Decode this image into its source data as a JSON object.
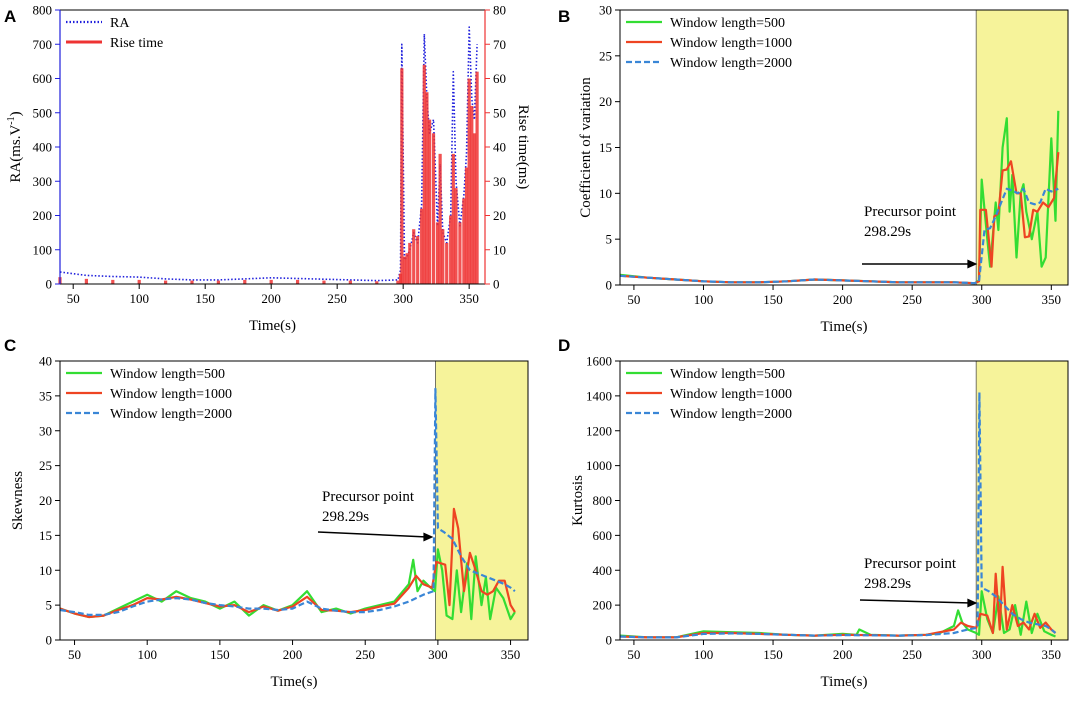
{
  "figure": {
    "colors": {
      "ra": "#1f1fdc",
      "rise_time": "#ee3333",
      "w500": "#33dd33",
      "w1000": "#ee4422",
      "w2000": "#3a86d6",
      "highlight": "#f6f39a",
      "axis": "#000000"
    }
  },
  "chart_data": [
    {
      "panel": "A",
      "type": "line",
      "title": "",
      "xlabel": "Time(s)",
      "ylabel": "RA(ms.V-1)",
      "ylabel_left_base": "RA(ms.V",
      "ylabel_left_sup": "-1",
      "ylabel_left_close": ")",
      "ylabel_right": "Rise time(ms)",
      "xlim": [
        40,
        362
      ],
      "ylim": [
        0,
        800
      ],
      "ylim_right": [
        0,
        80
      ],
      "xticks": [
        50,
        100,
        150,
        200,
        250,
        300,
        350
      ],
      "yticks": [
        0,
        100,
        200,
        300,
        400,
        500,
        600,
        700,
        800
      ],
      "yticks_right": [
        0,
        10,
        20,
        30,
        40,
        50,
        60,
        70,
        80
      ],
      "series": [
        {
          "name": "RA",
          "style": "dotted",
          "color_key": "ra",
          "x": [
            40,
            60,
            80,
            100,
            120,
            140,
            160,
            180,
            200,
            220,
            240,
            260,
            280,
            296,
            298,
            299,
            301,
            303,
            305,
            308,
            311,
            314,
            316,
            318,
            320,
            323,
            326,
            328,
            330,
            333,
            336,
            338,
            340,
            343,
            346,
            348,
            350,
            352,
            354,
            356
          ],
          "values": [
            35,
            25,
            22,
            20,
            15,
            12,
            12,
            15,
            18,
            16,
            14,
            12,
            10,
            12,
            40,
            700,
            70,
            80,
            100,
            150,
            120,
            230,
            730,
            540,
            440,
            480,
            170,
            350,
            150,
            120,
            200,
            620,
            300,
            170,
            260,
            380,
            750,
            540,
            480,
            700
          ]
        },
        {
          "name": "Rise time",
          "style": "bar",
          "color_key": "rise_time",
          "axis": "right",
          "x": [
            40,
            60,
            80,
            100,
            120,
            140,
            160,
            180,
            200,
            220,
            240,
            260,
            280,
            296,
            298,
            299,
            301,
            303,
            305,
            308,
            311,
            314,
            316,
            318,
            320,
            323,
            326,
            328,
            330,
            333,
            336,
            338,
            340,
            343,
            346,
            348,
            350,
            352,
            354,
            356
          ],
          "values": [
            2,
            1.5,
            1.2,
            1.2,
            1,
            1,
            1,
            1.2,
            1.2,
            1.2,
            1,
            1,
            0.8,
            1,
            3,
            63,
            8,
            9,
            12,
            16,
            14,
            22,
            64,
            56,
            48,
            44,
            18,
            38,
            16,
            12,
            20,
            38,
            28,
            18,
            25,
            34,
            60,
            52,
            44,
            62
          ]
        }
      ],
      "legend": [
        "RA",
        "Rise time"
      ],
      "legend_position": "top-left"
    },
    {
      "panel": "B",
      "type": "line",
      "title": "",
      "xlabel": "Time(s)",
      "ylabel": "Coefficient of variation",
      "xlim": [
        40,
        362
      ],
      "ylim": [
        0,
        30
      ],
      "xticks": [
        50,
        100,
        150,
        200,
        250,
        300,
        350
      ],
      "yticks": [
        0,
        5,
        10,
        15,
        20,
        25,
        30
      ],
      "highlight_xrange": [
        296,
        362
      ],
      "annotation": {
        "line1": "Precursor point",
        "line2": "298.29s",
        "x": 298.29
      },
      "series": [
        {
          "name": "Window length=500",
          "color_key": "w500",
          "x": [
            40,
            60,
            80,
            100,
            120,
            140,
            160,
            180,
            200,
            220,
            240,
            260,
            280,
            295,
            298,
            300,
            304,
            306,
            310,
            312,
            315,
            318,
            320,
            322,
            325,
            328,
            330,
            332,
            336,
            340,
            343,
            346,
            350,
            353,
            355
          ],
          "values": [
            1.1,
            0.8,
            0.6,
            0.4,
            0.3,
            0.3,
            0.4,
            0.6,
            0.5,
            0.4,
            0.3,
            0.3,
            0.3,
            0.2,
            0.5,
            11.5,
            5,
            2,
            9,
            6,
            15,
            18.2,
            8,
            12,
            3,
            10,
            11,
            8,
            5,
            8,
            2,
            3,
            16,
            7,
            19
          ]
        },
        {
          "name": "Window length=1000",
          "color_key": "w1000",
          "x": [
            40,
            60,
            80,
            100,
            120,
            140,
            160,
            180,
            200,
            220,
            240,
            260,
            280,
            295,
            298,
            299,
            303,
            307,
            309,
            312,
            315,
            318,
            321,
            325,
            328,
            331,
            334,
            337,
            340,
            344,
            348,
            352,
            355
          ],
          "values": [
            1.0,
            0.8,
            0.6,
            0.4,
            0.3,
            0.3,
            0.4,
            0.6,
            0.5,
            0.4,
            0.3,
            0.3,
            0.3,
            0.2,
            0.4,
            8.2,
            8.2,
            2.0,
            7.5,
            7.8,
            12.5,
            12.6,
            13.5,
            10,
            10,
            5.2,
            5.3,
            8.2,
            8.0,
            9,
            8.5,
            9.5,
            14.5
          ]
        },
        {
          "name": "Window length=2000",
          "color_key": "w2000",
          "style": "dashed",
          "x": [
            40,
            60,
            80,
            100,
            120,
            140,
            160,
            180,
            200,
            220,
            240,
            260,
            280,
            295,
            298,
            302,
            306,
            310,
            314,
            318,
            322,
            326,
            330,
            334,
            338,
            342,
            346,
            350,
            355
          ],
          "values": [
            1.0,
            0.8,
            0.6,
            0.4,
            0.3,
            0.3,
            0.4,
            0.6,
            0.5,
            0.4,
            0.3,
            0.3,
            0.3,
            0.2,
            0.4,
            6,
            6.2,
            7.5,
            9,
            10.5,
            10.3,
            10,
            10.5,
            9,
            8.8,
            9,
            10.5,
            10.2,
            10.5
          ]
        }
      ],
      "legend": [
        "Window length=500",
        "Window length=1000",
        "Window length=2000"
      ],
      "legend_position": "top-left"
    },
    {
      "panel": "C",
      "type": "line",
      "title": "",
      "xlabel": "Time(s)",
      "ylabel": "Skewness",
      "xlim": [
        40,
        362
      ],
      "ylim": [
        0,
        40
      ],
      "xticks": [
        50,
        100,
        150,
        200,
        250,
        300,
        350
      ],
      "yticks": [
        0,
        5,
        10,
        15,
        20,
        25,
        30,
        35,
        40
      ],
      "highlight_xrange": [
        298.3,
        362
      ],
      "annotation": {
        "line1": "Precursor point",
        "line2": "298.29s",
        "x": 298.29
      },
      "series": [
        {
          "name": "Window length=500",
          "color_key": "w500",
          "x": [
            40,
            50,
            60,
            70,
            80,
            90,
            100,
            110,
            120,
            130,
            140,
            150,
            160,
            170,
            180,
            190,
            200,
            210,
            220,
            230,
            240,
            250,
            260,
            270,
            280,
            283,
            286,
            290,
            295,
            298,
            300,
            303,
            306,
            310,
            313,
            316,
            320,
            323,
            326,
            330,
            333,
            336,
            340,
            345,
            350,
            353
          ],
          "values": [
            4.5,
            3.8,
            3.3,
            3.5,
            4.5,
            5.5,
            6.5,
            5.5,
            7,
            6,
            5.5,
            4.5,
            5.5,
            3.5,
            5,
            4.2,
            5,
            7,
            4,
            4.5,
            3.8,
            4.5,
            5,
            5.5,
            8,
            11.5,
            7,
            8.5,
            7.5,
            7,
            13,
            10,
            3.5,
            3,
            10,
            4,
            11,
            3,
            12,
            5,
            9,
            3,
            7.5,
            6,
            3,
            4
          ]
        },
        {
          "name": "Window length=1000",
          "color_key": "w1000",
          "x": [
            40,
            50,
            60,
            70,
            80,
            90,
            100,
            110,
            120,
            130,
            140,
            150,
            160,
            170,
            180,
            190,
            200,
            210,
            220,
            230,
            240,
            250,
            260,
            270,
            280,
            285,
            290,
            296,
            299,
            305,
            308,
            311,
            314,
            318,
            322,
            326,
            330,
            334,
            338,
            342,
            346,
            350,
            353
          ],
          "values": [
            4.5,
            3.8,
            3.3,
            3.5,
            4.3,
            5,
            6,
            5.8,
            6.2,
            5.8,
            5.3,
            4.8,
            5,
            4,
            4.8,
            4.2,
            4.8,
            6.2,
            4.3,
            4.2,
            4,
            4.3,
            4.8,
            5.2,
            7.5,
            9.2,
            8,
            7.5,
            11.2,
            10.8,
            5,
            18.8,
            16,
            7,
            12.5,
            10,
            7,
            6.5,
            7,
            8.5,
            8.5,
            5,
            4
          ]
        },
        {
          "name": "Window length=2000",
          "color_key": "w2000",
          "style": "dashed",
          "x": [
            40,
            50,
            60,
            70,
            80,
            90,
            100,
            110,
            120,
            130,
            140,
            150,
            160,
            170,
            180,
            190,
            200,
            210,
            220,
            230,
            240,
            250,
            260,
            270,
            280,
            290,
            297,
            298.3,
            300,
            304,
            310,
            316,
            322,
            328,
            334,
            340,
            346,
            350,
            353
          ],
          "values": [
            4.3,
            4,
            3.6,
            3.6,
            4,
            4.8,
            5.5,
            5.8,
            6,
            5.8,
            5.3,
            5,
            4.8,
            4.5,
            4.5,
            4.3,
            4.5,
            5.5,
            4.5,
            4.2,
            4,
            4,
            4.3,
            4.8,
            5.5,
            6.5,
            7,
            36,
            16,
            15.5,
            14.5,
            12,
            10,
            9.5,
            9,
            8.5,
            8,
            7.5,
            7
          ]
        }
      ],
      "legend": [
        "Window length=500",
        "Window length=1000",
        "Window length=2000"
      ],
      "legend_position": "top-left"
    },
    {
      "panel": "D",
      "type": "line",
      "title": "",
      "xlabel": "Time(s)",
      "ylabel": "Kurtosis",
      "xlim": [
        40,
        362
      ],
      "ylim": [
        0,
        1600
      ],
      "xticks": [
        50,
        100,
        150,
        200,
        250,
        300,
        350
      ],
      "yticks": [
        0,
        200,
        400,
        600,
        800,
        1000,
        1200,
        1400,
        1600
      ],
      "highlight_xrange": [
        296,
        362
      ],
      "annotation": {
        "line1": "Precursor point",
        "line2": "298.29s",
        "x": 298.29
      },
      "series": [
        {
          "name": "Window length=500",
          "color_key": "w500",
          "x": [
            40,
            60,
            80,
            100,
            120,
            140,
            160,
            180,
            200,
            210,
            212,
            220,
            240,
            260,
            270,
            280,
            283,
            286,
            290,
            296,
            298,
            300,
            304,
            308,
            312,
            316,
            320,
            324,
            328,
            332,
            336,
            340,
            345,
            350,
            353
          ],
          "values": [
            25,
            15,
            15,
            50,
            45,
            40,
            30,
            25,
            35,
            30,
            60,
            30,
            25,
            30,
            40,
            80,
            170,
            100,
            60,
            40,
            30,
            280,
            120,
            40,
            250,
            40,
            60,
            200,
            30,
            220,
            40,
            150,
            50,
            30,
            20
          ]
        },
        {
          "name": "Window length=1000",
          "color_key": "w1000",
          "x": [
            40,
            60,
            80,
            100,
            120,
            140,
            160,
            180,
            200,
            220,
            240,
            260,
            280,
            285,
            290,
            296,
            299,
            304,
            308,
            310,
            313,
            315,
            318,
            322,
            326,
            330,
            334,
            338,
            342,
            346,
            350,
            353
          ],
          "values": [
            20,
            15,
            15,
            40,
            40,
            35,
            30,
            25,
            30,
            28,
            25,
            30,
            60,
            100,
            80,
            70,
            150,
            140,
            40,
            380,
            60,
            420,
            60,
            200,
            80,
            100,
            60,
            150,
            70,
            100,
            60,
            40
          ]
        },
        {
          "name": "Window length=2000",
          "color_key": "w2000",
          "style": "dashed",
          "x": [
            40,
            60,
            80,
            100,
            120,
            140,
            160,
            180,
            200,
            220,
            240,
            260,
            280,
            290,
            297,
            298.3,
            300,
            305,
            310,
            316,
            322,
            328,
            334,
            340,
            346,
            350,
            353
          ],
          "values": [
            20,
            15,
            15,
            35,
            38,
            35,
            30,
            25,
            28,
            27,
            25,
            28,
            40,
            60,
            70,
            1420,
            300,
            280,
            250,
            200,
            150,
            120,
            100,
            90,
            80,
            60,
            40
          ]
        }
      ],
      "legend": [
        "Window length=500",
        "Window length=1000",
        "Window length=2000"
      ],
      "legend_position": "top-left"
    }
  ]
}
